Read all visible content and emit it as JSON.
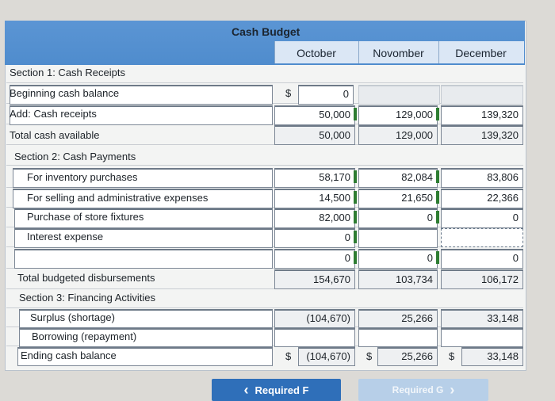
{
  "title": "Cash Budget",
  "columns": [
    "October",
    "Novomber",
    "December"
  ],
  "labels": {
    "s1": "Section 1: Cash Receipts",
    "beginning": "Beginning cash balance",
    "add_receipts": "Add: Cash receipts",
    "total_available": "Total cash available",
    "s2": "Section 2: Cash Payments",
    "inventory": "For inventory purchases",
    "selling": "For selling and administrative expenses",
    "fixtures": "Purchase of store fixtures",
    "interest": "Interest expense",
    "total_disb": "Total budgeted disbursements",
    "s3": "Section 3: Financing Activities",
    "surplus": "Surplus (shortage)",
    "borrowing": "Borrowing (repayment)",
    "ending": "Ending cash balance"
  },
  "values": {
    "beginning": {
      "oct": "0"
    },
    "receipts": {
      "oct": "50,000",
      "nov": "129,000",
      "dec": "139,320"
    },
    "total_available": {
      "oct": "50,000",
      "nov": "129,000",
      "dec": "139,320"
    },
    "inventory": {
      "oct": "58,170",
      "nov": "82,084",
      "dec": "83,806"
    },
    "selling": {
      "oct": "14,500",
      "nov": "21,650",
      "dec": "22,366"
    },
    "fixtures": {
      "oct": "82,000",
      "nov": "0",
      "dec": "0"
    },
    "interest": {
      "oct": "0"
    },
    "blank": {
      "oct": "0",
      "nov": "0",
      "dec": "0"
    },
    "total_disb": {
      "oct": "154,670",
      "nov": "103,734",
      "dec": "106,172"
    },
    "surplus": {
      "oct": "(104,670)",
      "nov": "25,266",
      "dec": "33,148"
    },
    "ending": {
      "oct": "(104,670)",
      "nov": "25,266",
      "dec": "33,148"
    }
  },
  "currency": "$",
  "nav": {
    "prev": "Required F",
    "next": "Required G",
    "prev_icon": "‹",
    "next_icon": "›"
  }
}
